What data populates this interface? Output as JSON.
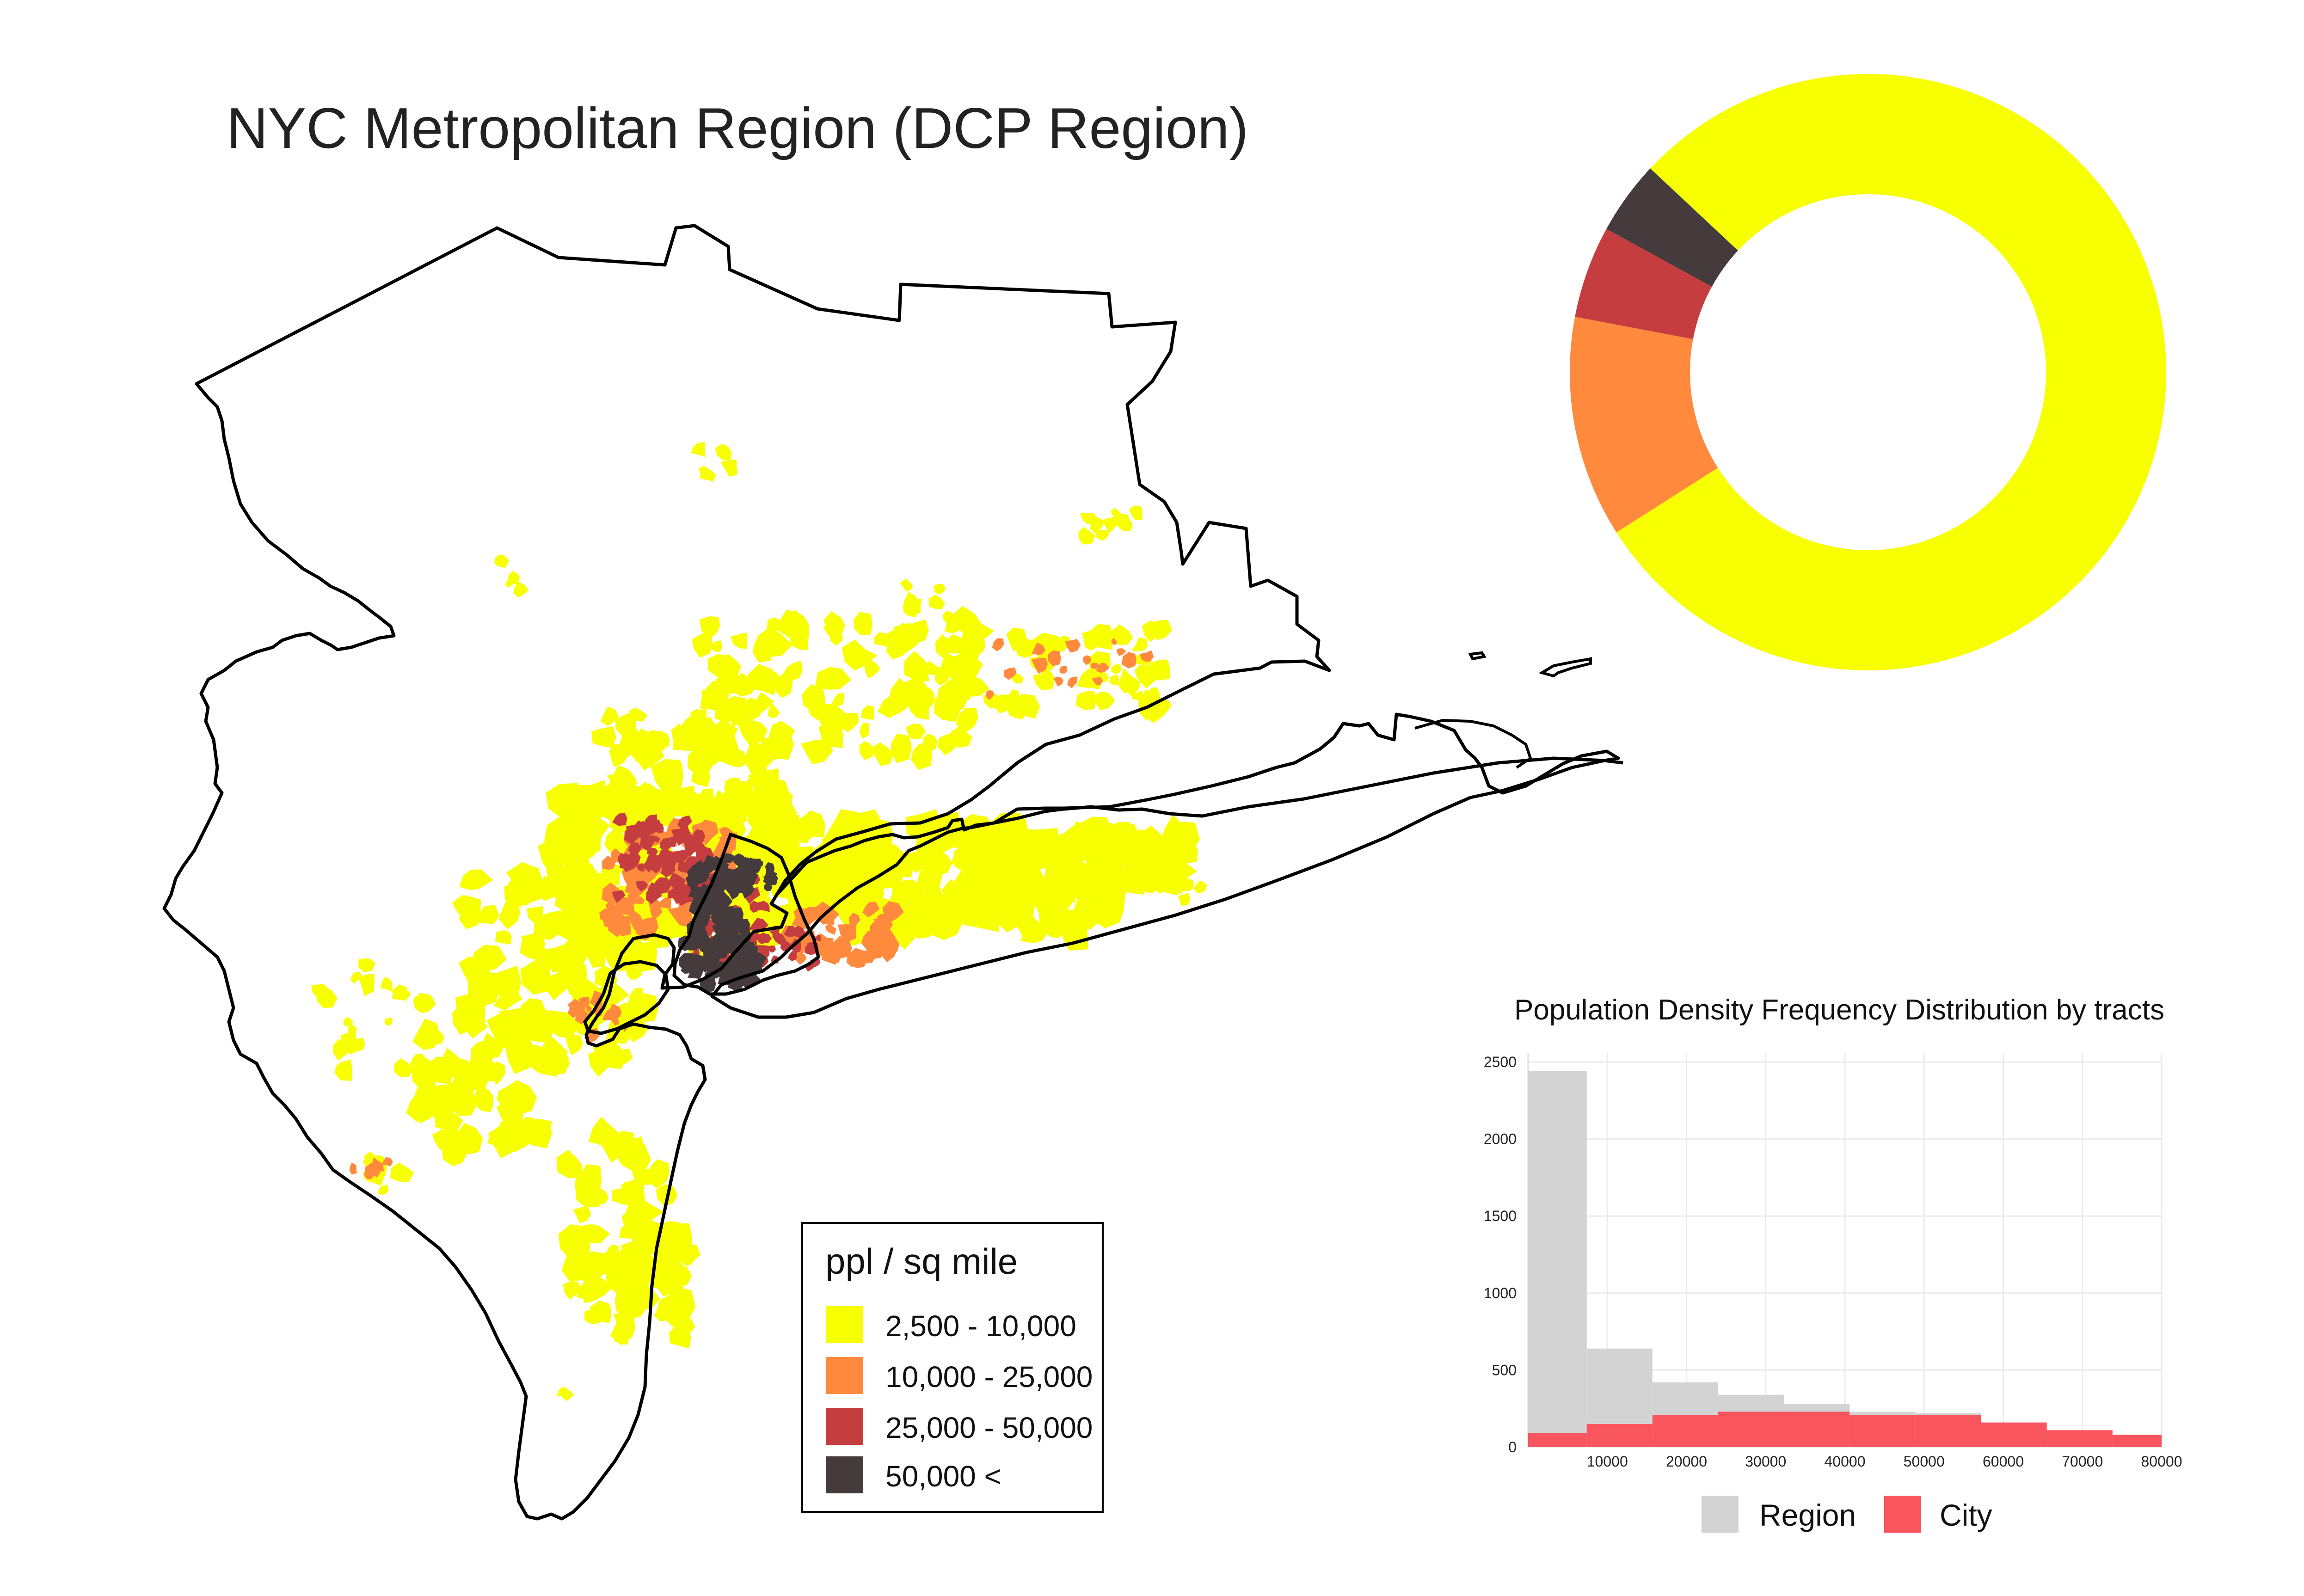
{
  "title": "NYC Metropolitan Region (DCP Region)",
  "legend": {
    "title": "ppl / sq mile",
    "items": [
      {
        "label": "2,500 - 10,000",
        "color": "#F7FF00"
      },
      {
        "label": "10,000 - 25,000",
        "color": "#FF8A3D"
      },
      {
        "label": "25,000 - 50,000",
        "color": "#C63D3F"
      },
      {
        "label": "50,000 <",
        "color": "#463B3C"
      }
    ]
  },
  "chart_data": [
    {
      "type": "pie",
      "variant": "donut",
      "legend": "none",
      "labels": [
        "2,500 - 10,000",
        "10,000 - 25,000",
        "25,000 - 50,000",
        "50,000 <"
      ],
      "values": [
        0.79,
        0.12,
        0.05,
        0.04
      ],
      "colors": [
        "#F7FF00",
        "#FF8A3D",
        "#C63D3F",
        "#463B3C"
      ]
    },
    {
      "type": "bar",
      "title": "Population Density Frequency Distribution by tracts",
      "xlabel": "",
      "ylabel": "",
      "xlim": [
        0,
        80000
      ],
      "ylim": [
        0,
        2500
      ],
      "xticks": [
        10000,
        20000,
        30000,
        40000,
        50000,
        60000,
        70000,
        80000
      ],
      "yticks": [
        0,
        500,
        1000,
        1500,
        2000,
        2500
      ],
      "grid": true,
      "legend_placement": "bottom",
      "bins": [
        [
          0,
          7400
        ],
        [
          7400,
          15700
        ],
        [
          15700,
          24000
        ],
        [
          24000,
          32300
        ],
        [
          32300,
          40600
        ],
        [
          40600,
          48900
        ],
        [
          48900,
          57200
        ],
        [
          57200,
          65500
        ],
        [
          65500,
          73800
        ],
        [
          73800,
          80000
        ]
      ],
      "series": [
        {
          "name": "Region",
          "color": "#D3D3D3",
          "values": [
            2440,
            640,
            420,
            340,
            280,
            230,
            220,
            160,
            110,
            80
          ]
        },
        {
          "name": "City",
          "color": "#F8555E",
          "values": [
            90,
            150,
            210,
            230,
            230,
            210,
            210,
            160,
            110,
            80
          ]
        }
      ]
    }
  ],
  "map": {
    "colors": {
      "low": "#F7FF00",
      "mid": "#FF8A3D",
      "high": "#C63D3F",
      "top": "#463B3C",
      "outline": "#000000"
    }
  }
}
